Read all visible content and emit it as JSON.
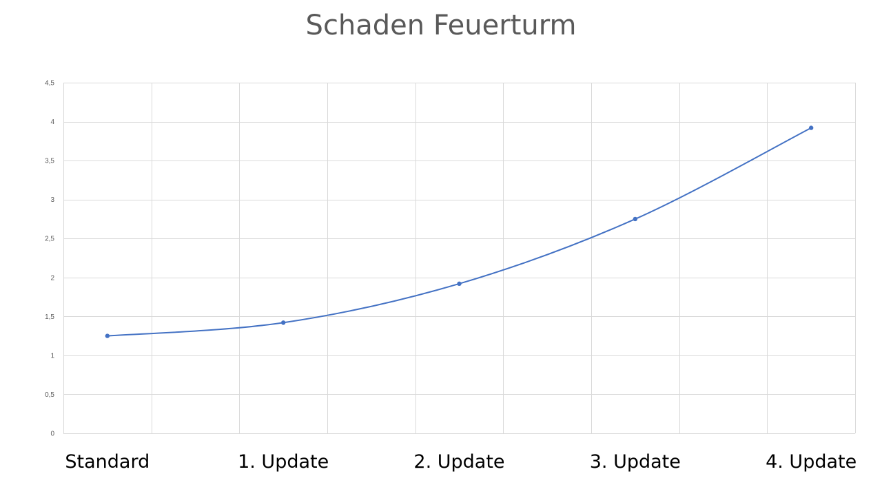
{
  "chart_data": {
    "type": "line",
    "title": "Schaden Feuerturm",
    "xlabel": "",
    "ylabel": "",
    "categories": [
      "Standard",
      "",
      "1. Update",
      "",
      "2. Update",
      "",
      "3. Update",
      "",
      "4. Update"
    ],
    "series": [
      {
        "values": [
          1.25,
          null,
          1.42,
          null,
          1.92,
          null,
          2.75,
          null,
          3.92
        ],
        "color": "#4472c4"
      }
    ],
    "y_ticks": [
      "0",
      "0,5",
      "1",
      "1,5",
      "2",
      "2,5",
      "3",
      "3,5",
      "4",
      "4,5"
    ],
    "ylim": [
      0,
      4.5
    ],
    "grid": true,
    "smooth": true,
    "legend": "none",
    "colors": {
      "line": "#4472c4",
      "grid": "#d9d9d9",
      "title": "#595959",
      "tick_text": "#595959"
    }
  }
}
